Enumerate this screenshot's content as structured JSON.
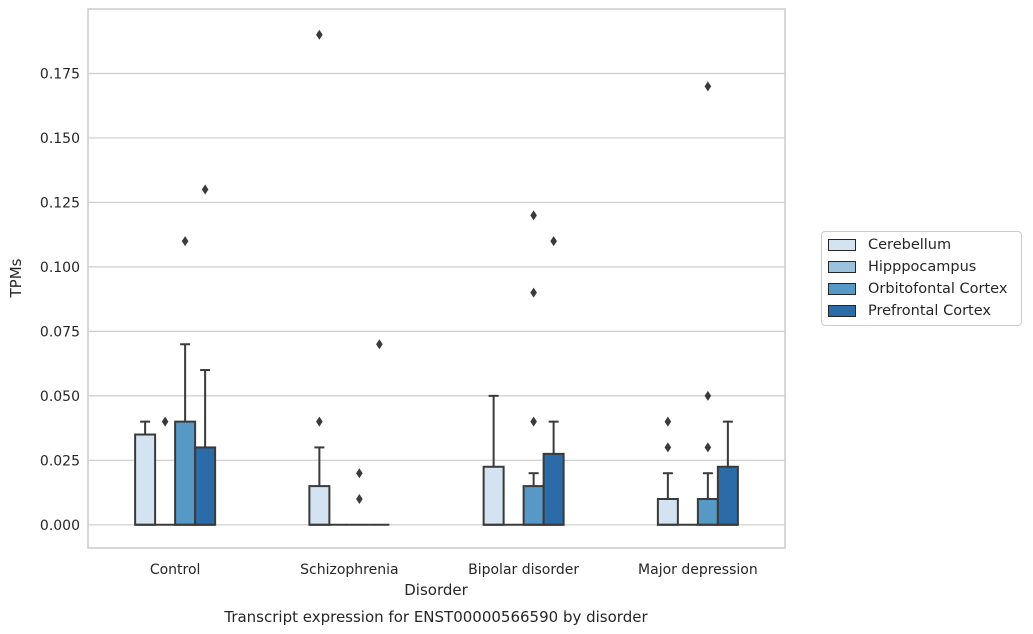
{
  "chart_data": {
    "type": "box",
    "title": "Transcript expression for ENST00000566590 by disorder",
    "xlabel": "Disorder",
    "ylabel": "TPMs",
    "categories": [
      "Control",
      "Schizophrenia",
      "Bipolar disorder",
      "Major depression"
    ],
    "ylim": [
      -0.009,
      0.2
    ],
    "yticks": [
      "0.000",
      "0.025",
      "0.050",
      "0.075",
      "0.100",
      "0.125",
      "0.150",
      "0.175"
    ],
    "grid": true,
    "legend_position": "right",
    "series": [
      {
        "name": "Cerebellum",
        "color": "#d3e3f2",
        "boxes": [
          {
            "q1": 0.0,
            "median": 0.0,
            "q3": 0.035,
            "whisker_high": 0.04,
            "outliers": []
          },
          {
            "q1": 0.0,
            "median": 0.0,
            "q3": 0.015,
            "whisker_high": 0.03,
            "outliers": [
              0.04,
              0.19
            ]
          },
          {
            "q1": 0.0,
            "median": 0.0,
            "q3": 0.0225,
            "whisker_high": 0.05,
            "outliers": []
          },
          {
            "q1": 0.0,
            "median": 0.0,
            "q3": 0.01,
            "whisker_high": 0.02,
            "outliers": [
              0.03,
              0.04
            ]
          }
        ]
      },
      {
        "name": "Hipppocampus",
        "color": "#9bc3de",
        "boxes": [
          {
            "q1": 0.0,
            "median": 0.0,
            "q3": 0.0,
            "whisker_high": 0.0,
            "outliers": [
              0.04
            ]
          },
          {
            "q1": 0.0,
            "median": 0.0,
            "q3": 0.0,
            "whisker_high": 0.0,
            "outliers": []
          },
          {
            "q1": 0.0,
            "median": 0.0,
            "q3": 0.0,
            "whisker_high": 0.0,
            "outliers": []
          },
          {
            "q1": 0.0,
            "median": 0.0,
            "q3": 0.0,
            "whisker_high": 0.0,
            "outliers": []
          }
        ]
      },
      {
        "name": "Orbitofontal Cortex",
        "color": "#5799c6",
        "boxes": [
          {
            "q1": 0.0,
            "median": 0.0,
            "q3": 0.04,
            "whisker_high": 0.07,
            "outliers": [
              0.11
            ]
          },
          {
            "q1": 0.0,
            "median": 0.0,
            "q3": 0.0,
            "whisker_high": 0.0,
            "outliers": [
              0.01,
              0.02
            ]
          },
          {
            "q1": 0.0,
            "median": 0.0,
            "q3": 0.015,
            "whisker_high": 0.02,
            "outliers": [
              0.04,
              0.09,
              0.12
            ]
          },
          {
            "q1": 0.0,
            "median": 0.0,
            "q3": 0.01,
            "whisker_high": 0.02,
            "outliers": [
              0.03,
              0.05,
              0.17
            ]
          }
        ]
      },
      {
        "name": "Prefrontal Cortex",
        "color": "#2b6ca8",
        "boxes": [
          {
            "q1": 0.0,
            "median": 0.0,
            "q3": 0.03,
            "whisker_high": 0.06,
            "outliers": [
              0.13
            ]
          },
          {
            "q1": 0.0,
            "median": 0.0,
            "q3": 0.0,
            "whisker_high": 0.0,
            "outliers": [
              0.07
            ]
          },
          {
            "q1": 0.0,
            "median": 0.0,
            "q3": 0.0275,
            "whisker_high": 0.04,
            "outliers": [
              0.11
            ]
          },
          {
            "q1": 0.0,
            "median": 0.0,
            "q3": 0.0225,
            "whisker_high": 0.04,
            "outliers": []
          }
        ]
      }
    ]
  }
}
